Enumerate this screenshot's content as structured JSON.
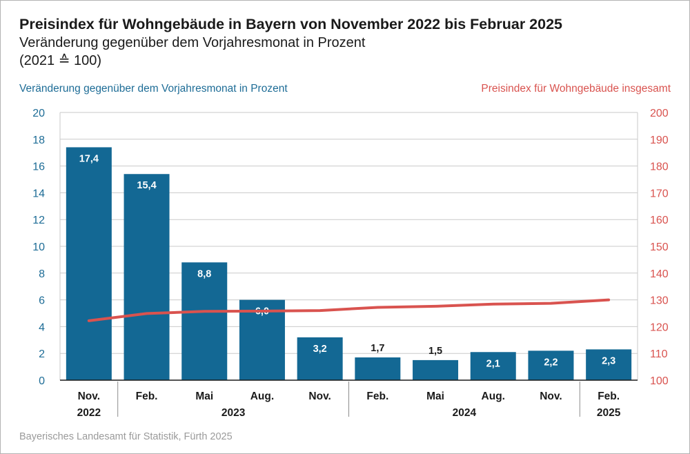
{
  "header": {
    "title": "Preisindex für Wohngebäude in Bayern von November 2022 bis Februar 2025",
    "subtitle": "Veränderung gegenüber dem Vorjahresmonat in Prozent",
    "subtitle2": "(2021 ≙ 100)"
  },
  "axes": {
    "left_label": "Veränderung gegenüber dem Vorjahresmonat in Prozent",
    "right_label": "Preisindex für Wohngebäude insgesamt"
  },
  "footer": {
    "source": "Bayerisches Landesamt für Statistik, Fürth 2025"
  },
  "colors": {
    "bar": "#136894",
    "line": "#d9534f",
    "left_axis": "#1d6c96",
    "right_axis": "#d9534f",
    "grid": "#c9c9c9"
  },
  "chart_data": {
    "type": "bar",
    "categories": [
      "Nov.",
      "Feb.",
      "Mai",
      "Aug.",
      "Nov.",
      "Feb.",
      "Mai",
      "Aug.",
      "Nov.",
      "Feb."
    ],
    "year_groups": [
      {
        "label": "2022",
        "count": 1
      },
      {
        "label": "2023",
        "count": 4
      },
      {
        "label": "2024",
        "count": 4
      },
      {
        "label": "2025",
        "count": 1
      }
    ],
    "series": [
      {
        "name": "Veränderung gegenüber dem Vorjahresmonat in Prozent",
        "type": "bar",
        "axis": "left",
        "values": [
          17.4,
          15.4,
          8.8,
          6.0,
          3.2,
          1.7,
          1.5,
          2.1,
          2.2,
          2.3
        ],
        "labels": [
          "17,4",
          "15,4",
          "8,8",
          "6,0",
          "3,2",
          "1,7",
          "1,5",
          "2,1",
          "2,2",
          "2,3"
        ]
      },
      {
        "name": "Preisindex für Wohngebäude insgesamt",
        "type": "line",
        "axis": "right",
        "values": [
          122.2,
          124.9,
          125.7,
          125.8,
          126.0,
          127.2,
          127.6,
          128.4,
          128.7,
          130.0
        ]
      }
    ],
    "ylim_left": [
      0,
      20
    ],
    "yticks_left": [
      0,
      2,
      4,
      6,
      8,
      10,
      12,
      14,
      16,
      18,
      20
    ],
    "ylim_right": [
      100,
      200
    ],
    "yticks_right": [
      100,
      110,
      120,
      130,
      140,
      150,
      160,
      170,
      180,
      190,
      200
    ],
    "grid": true
  }
}
